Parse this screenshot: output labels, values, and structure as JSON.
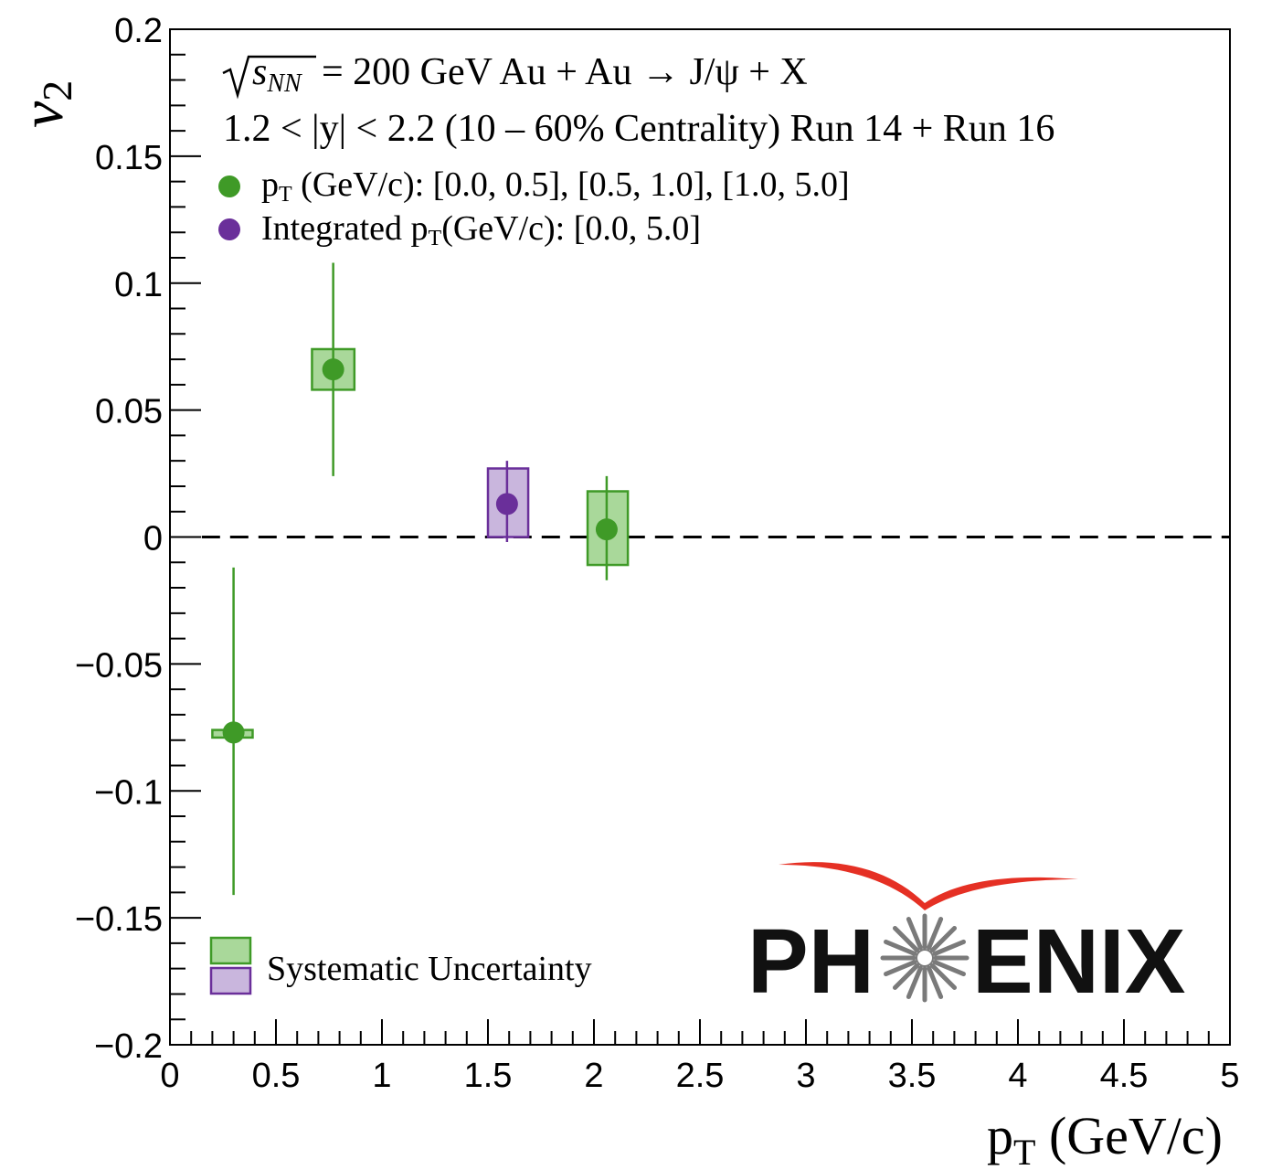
{
  "chart_data": {
    "type": "scatter",
    "title": "",
    "xlabel": "p",
    "xlabel_sub": "T",
    "xlabel_unit": " (GeV/c)",
    "ylabel": "v",
    "ylabel_sub": "2",
    "xlim": [
      0,
      5
    ],
    "ylim": [
      -0.2,
      0.2
    ],
    "x_ticks": [
      0,
      0.5,
      1,
      1.5,
      2,
      2.5,
      3,
      3.5,
      4,
      4.5,
      5
    ],
    "x_tick_labels": [
      "0",
      "0.5",
      "1",
      "1.5",
      "2",
      "2.5",
      "3",
      "3.5",
      "4",
      "4.5",
      "5"
    ],
    "y_ticks": [
      -0.2,
      -0.15,
      -0.1,
      -0.05,
      0,
      0.05,
      0.1,
      0.15,
      0.2
    ],
    "y_tick_labels": [
      "−0.2",
      "−0.15",
      "−0.1",
      "−0.05",
      "0",
      "0.05",
      "0.1",
      "0.15",
      "0.2"
    ],
    "reference_line": {
      "y": 0,
      "style": "dashed",
      "color": "#000000"
    },
    "annotations": [
      {
        "root": "s",
        "root_sub": "NN",
        "text": " = 200 GeV Au + Au → J/ψ + X"
      },
      {
        "text": "1.2 < |y| < 2.2 (10 – 60% Centrality) Run 14 + Run 16"
      }
    ],
    "series": [
      {
        "name": "p",
        "name_sub": "T",
        "name_rest": " (GeV/c): [0.0, 0.5], [0.5, 1.0], [1.0, 5.0]",
        "color": "#3f9a27",
        "fill": "#a9d89a",
        "points": [
          {
            "x": 0.3,
            "y": -0.077,
            "stat_low": -0.141,
            "stat_high": -0.012,
            "sys_low": -0.079,
            "sys_high": -0.076,
            "sys_xlow": 0.2,
            "sys_xhigh": 0.39
          },
          {
            "x": 0.77,
            "y": 0.066,
            "stat_low": 0.024,
            "stat_high": 0.108,
            "sys_low": 0.058,
            "sys_high": 0.074,
            "sys_xlow": 0.67,
            "sys_xhigh": 0.87
          },
          {
            "x": 2.06,
            "y": 0.003,
            "stat_low": -0.017,
            "stat_high": 0.024,
            "sys_low": -0.011,
            "sys_high": 0.018,
            "sys_xlow": 1.97,
            "sys_xhigh": 2.16
          }
        ]
      },
      {
        "name": "Integrated p",
        "name_sub": "T",
        "name_rest": "(GeV/c): [0.0, 5.0]",
        "color": "#6a2f9a",
        "fill": "#c9b6dd",
        "points": [
          {
            "x": 1.59,
            "y": 0.013,
            "stat_low": -0.002,
            "stat_high": 0.03,
            "sys_low": 0.0,
            "sys_high": 0.027,
            "sys_xlow": 1.5,
            "sys_xhigh": 1.69
          }
        ]
      }
    ],
    "legend": {
      "position": "top-left",
      "systematic_label": "Systematic Uncertainty",
      "systematic_position": "bottom-left"
    },
    "logo": {
      "text": "PHENIX",
      "position": "bottom-right"
    }
  }
}
